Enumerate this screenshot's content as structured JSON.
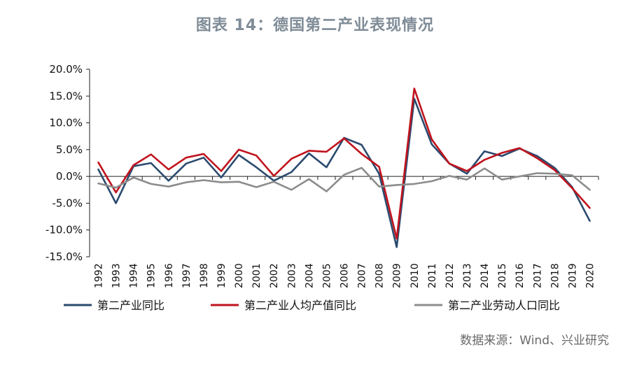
{
  "title": "图表 14：德国第二产业表现情况",
  "source": "数据来源：Wind、兴业研究",
  "chart_data": {
    "type": "line",
    "title": "图表 14：德国第二产业表现情况",
    "xlabel": "",
    "ylabel": "",
    "ylim": [
      -15,
      20
    ],
    "yticks": [
      20,
      15,
      10,
      5,
      0,
      -5,
      -10,
      -15
    ],
    "ytick_labels": [
      "20.0%",
      "15.0%",
      "10.0%",
      "5.0%",
      "0.0%",
      "-5.0%",
      "-10.0%",
      "-15.0%"
    ],
    "categories": [
      "1992",
      "1993",
      "1994",
      "1995",
      "1996",
      "1997",
      "1998",
      "1999",
      "2000",
      "2001",
      "2002",
      "2003",
      "2004",
      "2005",
      "2006",
      "2007",
      "2008",
      "2009",
      "2010",
      "2011",
      "2012",
      "2013",
      "2014",
      "2015",
      "2016",
      "2017",
      "2018",
      "2019",
      "2020"
    ],
    "legend_position": "bottom",
    "grid": false,
    "series": [
      {
        "name": "第二产业同比",
        "color": "#2b4a6e",
        "values": [
          1.3,
          -5.0,
          1.9,
          2.5,
          -0.8,
          2.4,
          3.5,
          -0.2,
          4.0,
          1.7,
          -0.8,
          0.8,
          4.3,
          1.7,
          7.2,
          5.9,
          0.5,
          -13.2,
          14.5,
          6.0,
          2.4,
          0.5,
          4.7,
          3.8,
          5.2,
          3.8,
          1.6,
          -2.0,
          -8.3
        ]
      },
      {
        "name": "第二产业人均产值同比",
        "color": "#c0131d",
        "values": [
          2.6,
          -3.0,
          2.1,
          4.1,
          1.3,
          3.5,
          4.2,
          1.0,
          5.0,
          3.9,
          0.1,
          3.3,
          4.8,
          4.6,
          7.1,
          4.2,
          1.8,
          -11.6,
          16.4,
          6.9,
          2.4,
          1.0,
          3.1,
          4.4,
          5.3,
          3.4,
          1.2,
          -2.2,
          -5.9
        ]
      },
      {
        "name": "第二产业劳动人口同比",
        "color": "#8c8c8c",
        "values": [
          -1.3,
          -2.1,
          -0.2,
          -1.4,
          -1.9,
          -1.1,
          -0.7,
          -1.1,
          -1.0,
          -2.0,
          -1.0,
          -2.5,
          -0.5,
          -2.8,
          0.3,
          1.6,
          -1.9,
          -1.6,
          -1.4,
          -0.9,
          0.1,
          -0.6,
          1.5,
          -0.6,
          0.0,
          0.6,
          0.5,
          0.2,
          -2.5
        ]
      }
    ]
  }
}
